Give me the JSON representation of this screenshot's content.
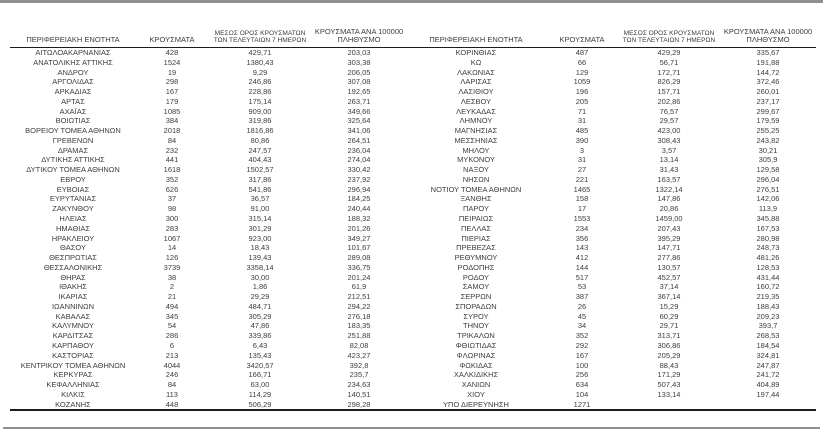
{
  "table": {
    "headers": {
      "region": "ΠΕΡΙΦΕΡΕΙΑΚΗ ΕΝΟΤΗΤΑ",
      "cases": "ΚΡΟΥΣΜΑΤΑ",
      "avg7_line1": "ΜΕΣΟΣ ΟΡΟΣ ΚΡΟΥΣΜΑΤΩΝ",
      "avg7_line2": "ΤΩΝ ΤΕΛΕΥΤΑΙΩΝ 7 ΗΜΕΡΩΝ",
      "per100k_line1": "ΚΡΟΥΣΜΑΤΑ ΑΝΑ 100000",
      "per100k_line2": "ΠΛΗΘΥΣΜΟ"
    },
    "left_rows": [
      [
        "ΑΙΤΩΛΟΑΚΑΡΝΑΝΙΑΣ",
        "428",
        "429,71",
        "203,03"
      ],
      [
        "ΑΝΑΤΟΛΙΚΗΣ ΑΤΤΙΚΗΣ",
        "1524",
        "1380,43",
        "303,38"
      ],
      [
        "ΑΝΔΡΟΥ",
        "19",
        "9,29",
        "206,05"
      ],
      [
        "ΑΡΓΟΛΙΔΑΣ",
        "298",
        "246,86",
        "307,08"
      ],
      [
        "ΑΡΚΑΔΙΑΣ",
        "167",
        "228,86",
        "192,65"
      ],
      [
        "ΑΡΤΑΣ",
        "179",
        "175,14",
        "263,71"
      ],
      [
        "ΑΧΑΪΑΣ",
        "1085",
        "909,00",
        "349,66"
      ],
      [
        "ΒΟΙΩΤΙΑΣ",
        "384",
        "319,86",
        "325,64"
      ],
      [
        "ΒΟΡΕΙΟΥ ΤΟΜΕΑ ΑΘΗΝΩΝ",
        "2018",
        "1816,86",
        "341,06"
      ],
      [
        "ΓΡΕΒΕΝΩΝ",
        "84",
        "80,86",
        "264,51"
      ],
      [
        "ΔΡΑΜΑΣ",
        "232",
        "247,57",
        "236,04"
      ],
      [
        "ΔΥΤΙΚΗΣ ΑΤΤΙΚΗΣ",
        "441",
        "404,43",
        "274,04"
      ],
      [
        "ΔΥΤΙΚΟΥ ΤΟΜΕΑ ΑΘΗΝΩΝ",
        "1618",
        "1502,57",
        "330,42"
      ],
      [
        "ΕΒΡΟΥ",
        "352",
        "317,86",
        "237,92"
      ],
      [
        "ΕΥΒΟΙΑΣ",
        "626",
        "541,86",
        "296,94"
      ],
      [
        "ΕΥΡΥΤΑΝΙΑΣ",
        "37",
        "36,57",
        "184,25"
      ],
      [
        "ΖΑΚΥΝΘΟΥ",
        "98",
        "91,00",
        "240,44"
      ],
      [
        "ΗΛΕΙΑΣ",
        "300",
        "315,14",
        "188,32"
      ],
      [
        "ΗΜΑΘΙΑΣ",
        "283",
        "301,29",
        "201,26"
      ],
      [
        "ΗΡΑΚΛΕΙΟΥ",
        "1067",
        "923,00",
        "349,27"
      ],
      [
        "ΘΑΣΟΥ",
        "14",
        "18,43",
        "101,67"
      ],
      [
        "ΘΕΣΠΡΩΤΙΑΣ",
        "126",
        "139,43",
        "289,08"
      ],
      [
        "ΘΕΣΣΑΛΟΝΙΚΗΣ",
        "3739",
        "3358,14",
        "336,75"
      ],
      [
        "ΘΗΡΑΣ",
        "38",
        "30,00",
        "201,24"
      ],
      [
        "ΙΘΑΚΗΣ",
        "2",
        "1,86",
        "61,9"
      ],
      [
        "ΙΚΑΡΙΑΣ",
        "21",
        "29,29",
        "212,51"
      ],
      [
        "ΙΩΑΝΝΙΝΩΝ",
        "494",
        "484,71",
        "294,22"
      ],
      [
        "ΚΑΒΑΛΑΣ",
        "345",
        "305,29",
        "276,18"
      ],
      [
        "ΚΑΛΥΜΝΟΥ",
        "54",
        "47,86",
        "183,35"
      ],
      [
        "ΚΑΡΔΙΤΣΑΣ",
        "286",
        "339,86",
        "251,88"
      ],
      [
        "ΚΑΡΠΑΘΟΥ",
        "6",
        "6,43",
        "82,08"
      ],
      [
        "ΚΑΣΤΟΡΙΑΣ",
        "213",
        "135,43",
        "423,27"
      ],
      [
        "ΚΕΝΤΡΙΚΟΥ ΤΟΜΕΑ ΑΘΗΝΩΝ",
        "4044",
        "3420,57",
        "392,8"
      ],
      [
        "ΚΕΡΚΥΡΑΣ",
        "246",
        "166,71",
        "235,7"
      ],
      [
        "ΚΕΦΑΛΛΗΝΙΑΣ",
        "84",
        "63,00",
        "234,63"
      ],
      [
        "ΚΙΛΚΙΣ",
        "113",
        "114,29",
        "140,51"
      ],
      [
        "ΚΟΖΑΝΗΣ",
        "448",
        "506,29",
        "298,28"
      ]
    ],
    "right_rows": [
      [
        "ΚΟΡΙΝΘΙΑΣ",
        "487",
        "429,29",
        "335,67"
      ],
      [
        "ΚΩ",
        "66",
        "56,71",
        "191,88"
      ],
      [
        "ΛΑΚΩΝΙΑΣ",
        "129",
        "172,71",
        "144,72"
      ],
      [
        "ΛΑΡΙΣΑΣ",
        "1059",
        "826,29",
        "372,46"
      ],
      [
        "ΛΑΣΙΘΙΟΥ",
        "196",
        "157,71",
        "260,01"
      ],
      [
        "ΛΕΣΒΟΥ",
        "205",
        "202,86",
        "237,17"
      ],
      [
        "ΛΕΥΚΑΔΑΣ",
        "71",
        "76,57",
        "299,67"
      ],
      [
        "ΛΗΜΝΟΥ",
        "31",
        "29,57",
        "179,59"
      ],
      [
        "ΜΑΓΝΗΣΙΑΣ",
        "485",
        "423,00",
        "255,25"
      ],
      [
        "ΜΕΣΣΗΝΙΑΣ",
        "390",
        "308,43",
        "243,82"
      ],
      [
        "ΜΗΛΟΥ",
        "3",
        "3,57",
        "30,21"
      ],
      [
        "ΜΥΚΟΝΟΥ",
        "31",
        "13,14",
        "305,9"
      ],
      [
        "ΝΑΞΟΥ",
        "27",
        "31,43",
        "129,58"
      ],
      [
        "ΝΗΣΩΝ",
        "221",
        "163,57",
        "296,04"
      ],
      [
        "ΝΟΤΙΟΥ ΤΟΜΕΑ ΑΘΗΝΩΝ",
        "1465",
        "1322,14",
        "276,51"
      ],
      [
        "ΞΑΝΘΗΣ",
        "158",
        "147,86",
        "142,06"
      ],
      [
        "ΠΑΡΟΥ",
        "17",
        "20,86",
        "113,9"
      ],
      [
        "ΠΕΙΡΑΙΩΣ",
        "1553",
        "1459,00",
        "345,88"
      ],
      [
        "ΠΕΛΛΑΣ",
        "234",
        "207,43",
        "167,53"
      ],
      [
        "ΠΙΕΡΙΑΣ",
        "356",
        "395,29",
        "280,98"
      ],
      [
        "ΠΡΕΒΕΖΑΣ",
        "143",
        "147,71",
        "248,73"
      ],
      [
        "ΡΕΘΥΜΝΟΥ",
        "412",
        "277,86",
        "481,26"
      ],
      [
        "ΡΟΔΟΠΗΣ",
        "144",
        "130,57",
        "128,53"
      ],
      [
        "ΡΟΔΟΥ",
        "517",
        "452,57",
        "431,44"
      ],
      [
        "ΣΑΜΟΥ",
        "53",
        "37,14",
        "160,72"
      ],
      [
        "ΣΕΡΡΩΝ",
        "387",
        "367,14",
        "219,35"
      ],
      [
        "ΣΠΟΡΑΔΩΝ",
        "26",
        "15,29",
        "188,43"
      ],
      [
        "ΣΥΡΟΥ",
        "45",
        "60,29",
        "209,23"
      ],
      [
        "ΤΗΝΟΥ",
        "34",
        "29,71",
        "393,7"
      ],
      [
        "ΤΡΙΚΑΛΩΝ",
        "352",
        "313,71",
        "268,53"
      ],
      [
        "ΦΘΙΩΤΙΔΑΣ",
        "292",
        "306,86",
        "184,54"
      ],
      [
        "ΦΛΩΡΙΝΑΣ",
        "167",
        "205,29",
        "324,81"
      ],
      [
        "ΦΩΚΙΔΑΣ",
        "100",
        "88,43",
        "247,87"
      ],
      [
        "ΧΑΛΚΙΔΙΚΗΣ",
        "256",
        "171,29",
        "241,72"
      ],
      [
        "ΧΑΝΙΩΝ",
        "634",
        "507,43",
        "404,89"
      ],
      [
        "ΧΙΟΥ",
        "104",
        "133,14",
        "197,44"
      ],
      [
        "ΥΠΟ ΔΙΕΡΕΥΝΗΣΗ",
        "1271",
        "",
        ""
      ]
    ]
  },
  "colors": {
    "text": "#3d3d3d",
    "table_rule": "#1c1c1c",
    "outer_rule": "#8f8f8f",
    "background": "#ffffff"
  }
}
